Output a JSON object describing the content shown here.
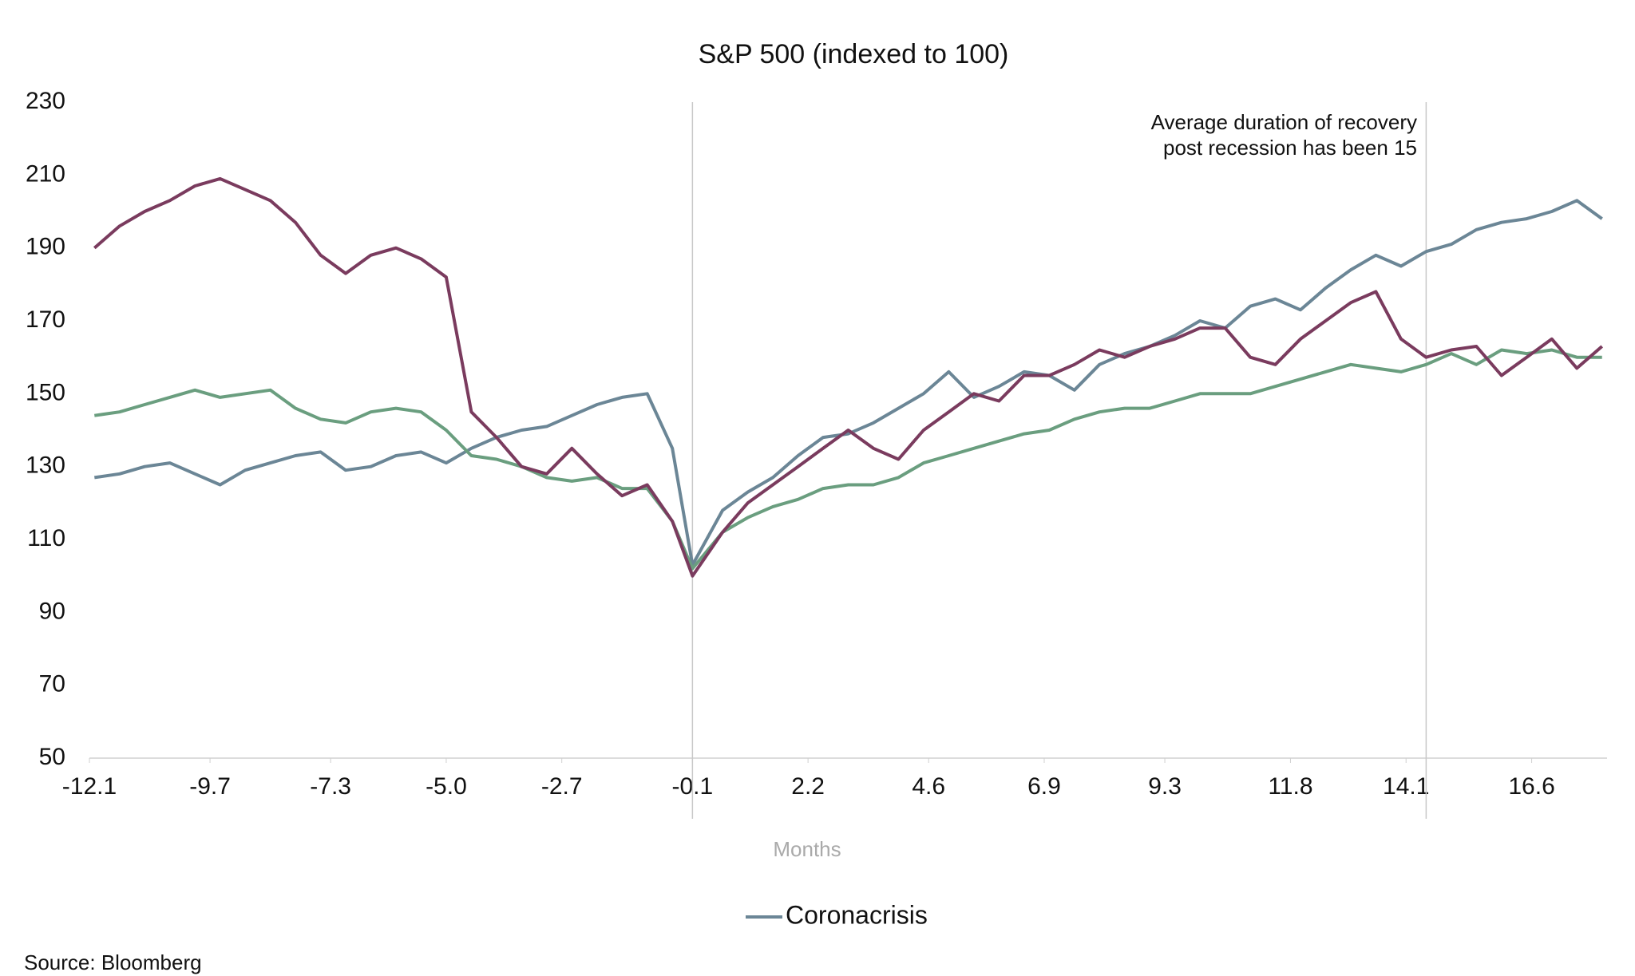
{
  "chart_data": {
    "type": "line",
    "title": "S&P 500 (indexed to 100)",
    "x_label": "Months",
    "annotation": [
      "Average duration of recovery",
      "post recession has been 15"
    ],
    "source": "Source: Bloomberg",
    "x": [
      -12,
      -11.5,
      -11,
      -10.5,
      -10,
      -9.5,
      -9,
      -8.5,
      -8,
      -7.5,
      -7,
      -6.5,
      -6,
      -5.5,
      -5,
      -4.5,
      -4,
      -3.5,
      -3,
      -2.5,
      -2,
      -1.5,
      -1,
      -0.5,
      -0.1,
      0.5,
      1,
      1.5,
      2,
      2.5,
      3,
      3.5,
      4,
      4.5,
      5,
      5.5,
      6,
      6.5,
      7,
      7.5,
      8,
      8.5,
      9,
      9.5,
      10,
      10.5,
      11,
      11.5,
      12,
      12.5,
      13,
      13.5,
      14,
      14.5,
      15,
      15.5,
      16,
      16.5,
      17,
      17.5,
      18
    ],
    "series": [
      {
        "name": "Coronacrisis",
        "color": "#6b8696",
        "values": [
          127,
          128,
          130,
          131,
          128,
          125,
          129,
          131,
          133,
          134,
          129,
          130,
          133,
          134,
          131,
          135,
          138,
          140,
          141,
          144,
          147,
          149,
          150,
          135,
          103,
          118,
          123,
          127,
          133,
          138,
          139,
          142,
          146,
          150,
          156,
          149,
          152,
          156,
          155,
          151,
          158,
          161,
          163,
          166,
          170,
          168,
          174,
          176,
          173,
          179,
          184,
          188,
          185,
          189,
          191,
          195,
          197,
          198,
          200,
          203,
          198
        ]
      },
      {
        "color": "#6a9e7f",
        "values": [
          144,
          145,
          147,
          149,
          151,
          149,
          150,
          151,
          146,
          143,
          142,
          145,
          146,
          145,
          140,
          133,
          132,
          130,
          127,
          126,
          127,
          124,
          124,
          115,
          102,
          112,
          116,
          119,
          121,
          124,
          125,
          125,
          127,
          131,
          133,
          135,
          137,
          139,
          140,
          143,
          145,
          146,
          146,
          148,
          150,
          150,
          150,
          152,
          154,
          156,
          158,
          157,
          156,
          158,
          161,
          158,
          162,
          161,
          162,
          160,
          160
        ]
      },
      {
        "color": "#7a3b5e",
        "values": [
          190,
          196,
          200,
          203,
          207,
          209,
          206,
          203,
          197,
          188,
          183,
          188,
          190,
          187,
          182,
          145,
          138,
          130,
          128,
          135,
          128,
          122,
          125,
          115,
          100,
          112,
          120,
          125,
          130,
          135,
          140,
          135,
          132,
          140,
          145,
          150,
          148,
          155,
          155,
          158,
          162,
          160,
          163,
          165,
          168,
          168,
          160,
          158,
          165,
          170,
          175,
          178,
          165,
          160,
          162,
          163,
          155,
          160,
          165,
          157,
          163
        ]
      }
    ],
    "xlim": [
      -12.1,
      18.1
    ],
    "xticks": [
      -12.1,
      -9.7,
      -7.3,
      {
        "value": -5,
        "label": "-5.0"
      },
      -2.7,
      -0.1,
      2.2,
      4.6,
      6.9,
      9.3,
      11.8,
      14.1,
      16.6
    ],
    "vlines": [
      -0.1,
      14.5
    ],
    "ylim": [
      50,
      230
    ],
    "yticks": [
      50,
      70,
      90,
      110,
      130,
      150,
      170,
      190,
      210,
      230
    ],
    "grid": false
  }
}
